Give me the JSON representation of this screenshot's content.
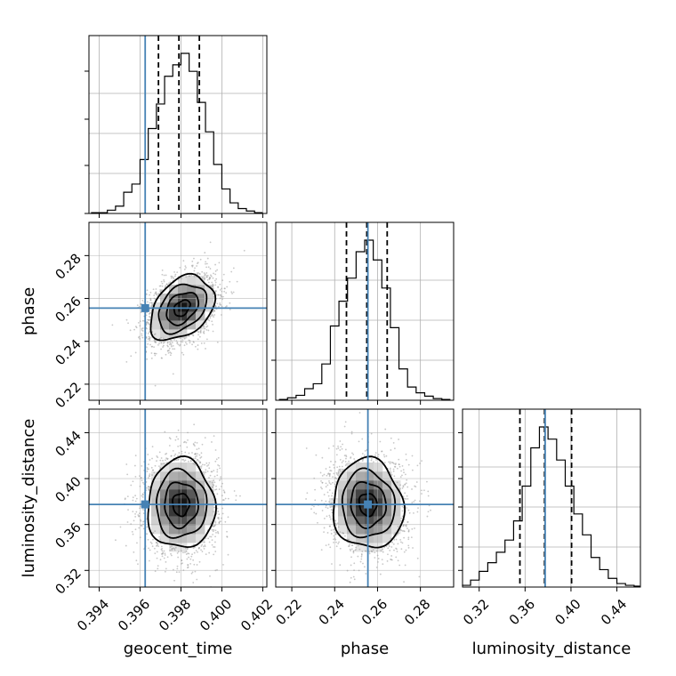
{
  "chart_data": {
    "type": "corner",
    "parameters": [
      "geocent_time",
      "phase",
      "luminosity_distance"
    ],
    "labels": {
      "geocent_time": "geocent_time",
      "phase": "phase",
      "luminosity_distance": "luminosity_distance"
    },
    "ranges": {
      "geocent_time": [
        0.3935,
        0.4022
      ],
      "phase": [
        0.2125,
        0.2955
      ],
      "luminosity_distance": [
        0.3055,
        0.4605
      ]
    },
    "ticks": {
      "geocent_time": [
        "0.394",
        "0.396",
        "0.398",
        "0.400",
        "0.402"
      ],
      "phase": [
        "0.22",
        "0.24",
        "0.26",
        "0.28"
      ],
      "luminosity_distance": [
        "0.32",
        "0.36",
        "0.40",
        "0.44"
      ]
    },
    "truths": {
      "geocent_time": 0.39625,
      "phase": 0.2555,
      "luminosity_distance": 0.3775
    },
    "truth_color": "#4682b4",
    "quantiles": {
      "geocent_time": [
        0.3969,
        0.3979,
        0.3989
      ],
      "phase": [
        0.2455,
        0.255,
        0.2645
      ],
      "luminosity_distance": [
        0.3555,
        0.377,
        0.4005
      ]
    },
    "marginals": {
      "geocent_time": {
        "bin_edges": [
          0.3936,
          0.394,
          0.3944,
          0.3948,
          0.3952,
          0.3956,
          0.396,
          0.3964,
          0.3968,
          0.3972,
          0.3976,
          0.398,
          0.3984,
          0.3988,
          0.3992,
          0.3996,
          0.4,
          0.4004,
          0.4008,
          0.4012,
          0.4016,
          0.402
        ],
        "heights": [
          0.005,
          0.005,
          0.02,
          0.045,
          0.13,
          0.18,
          0.33,
          0.52,
          0.67,
          0.84,
          0.91,
          0.98,
          0.87,
          0.68,
          0.5,
          0.3,
          0.15,
          0.065,
          0.03,
          0.015,
          0.005
        ]
      },
      "phase": {
        "bin_edges": [
          0.214,
          0.218,
          0.222,
          0.226,
          0.23,
          0.234,
          0.238,
          0.242,
          0.246,
          0.25,
          0.254,
          0.258,
          0.262,
          0.266,
          0.27,
          0.274,
          0.278,
          0.282,
          0.286,
          0.29,
          0.294
        ],
        "heights": [
          0.005,
          0.015,
          0.03,
          0.07,
          0.1,
          0.22,
          0.45,
          0.6,
          0.74,
          0.9,
          0.97,
          0.85,
          0.68,
          0.44,
          0.19,
          0.08,
          0.045,
          0.025,
          0.01,
          0.005
        ]
      },
      "luminosity_distance": {
        "bin_edges": [
          0.305,
          0.3125,
          0.32,
          0.3275,
          0.335,
          0.3425,
          0.35,
          0.3575,
          0.365,
          0.3725,
          0.38,
          0.3875,
          0.395,
          0.4025,
          0.41,
          0.4175,
          0.425,
          0.4325,
          0.44,
          0.4475,
          0.455,
          0.46
        ],
        "heights": [
          0.01,
          0.04,
          0.09,
          0.14,
          0.2,
          0.27,
          0.38,
          0.58,
          0.8,
          0.92,
          0.85,
          0.73,
          0.58,
          0.42,
          0.3,
          0.17,
          0.1,
          0.05,
          0.02,
          0.01,
          0.005
        ]
      }
    },
    "pairs": [
      {
        "x": "geocent_time",
        "y": "phase",
        "mean": [
          0.39805,
          0.2555
        ],
        "std": [
          0.00078,
          0.0075
        ],
        "rho": 0.35
      },
      {
        "x": "geocent_time",
        "y": "luminosity_distance",
        "mean": [
          0.398,
          0.3775
        ],
        "std": [
          0.00082,
          0.0195
        ],
        "rho": 0.0
      },
      {
        "x": "phase",
        "y": "luminosity_distance",
        "mean": [
          0.2555,
          0.3775
        ],
        "std": [
          0.0082,
          0.0195
        ],
        "rho": -0.05
      }
    ],
    "contour_levels_sigma": [
      0.5,
      1.0,
      1.5,
      2.0
    ],
    "grid": true
  }
}
